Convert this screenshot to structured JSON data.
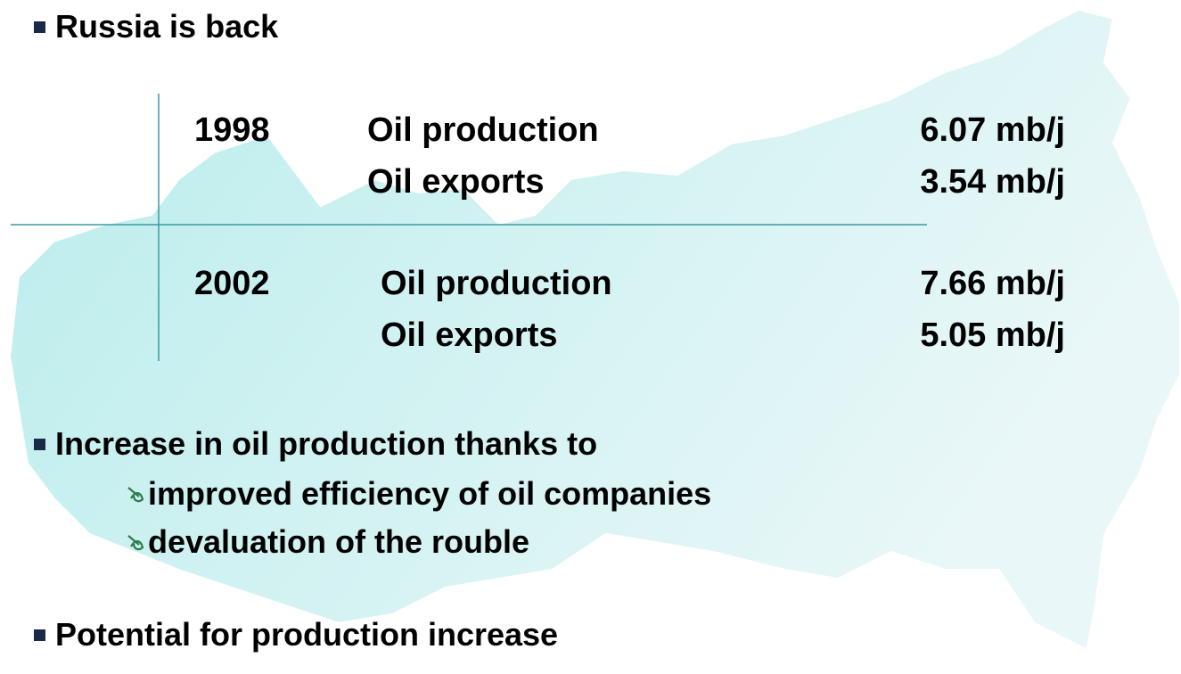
{
  "title": "Russia is back",
  "table": {
    "groups": [
      {
        "year": "1998",
        "rows": [
          {
            "label": "Oil production",
            "value": "6.07 mb/j"
          },
          {
            "label": "Oil exports",
            "value": "3.54 mb/j"
          }
        ]
      },
      {
        "year": "2002",
        "rows": [
          {
            "label": "Oil production",
            "value": "7.66 mb/j"
          },
          {
            "label": "Oil exports",
            "value": "5.05 mb/j"
          }
        ]
      }
    ]
  },
  "bullets": [
    {
      "text": "Increase in oil production thanks to",
      "sub": [
        "improved efficiency of oil companies",
        "devaluation of the rouble"
      ]
    },
    {
      "text": "Potential for production increase"
    }
  ]
}
